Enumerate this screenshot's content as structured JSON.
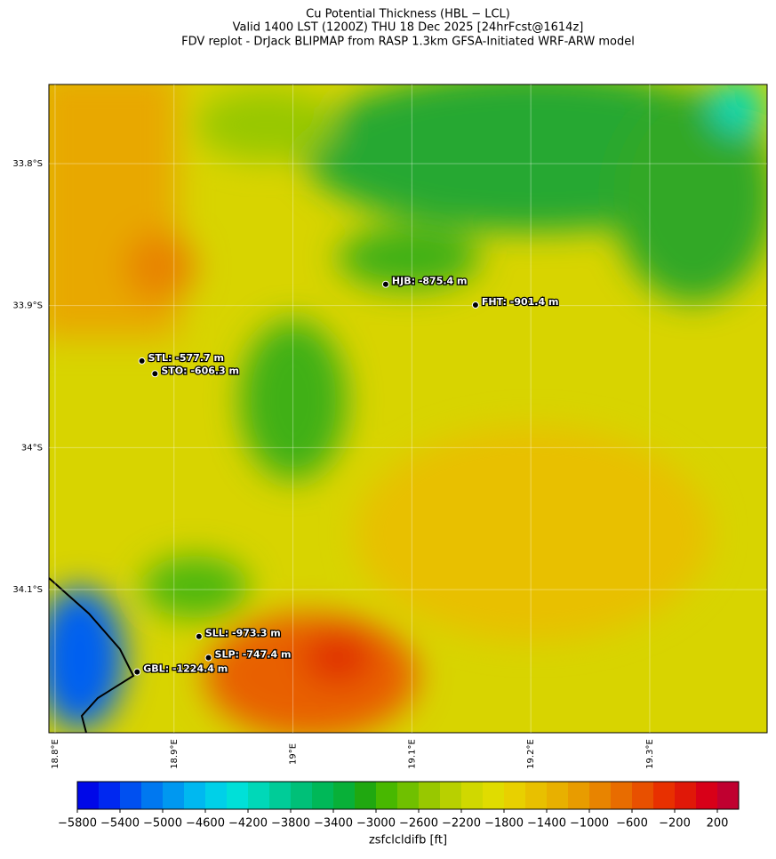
{
  "chart_data": {
    "type": "map",
    "title": [
      "Cu Potential Thickness (HBL − LCL)",
      "Valid 1400 LST (1200Z) THU 18 Dec 2025 [24hrFcst@1614z]",
      "FDV replot - DrJack BLIPMAP from RASP 1.3km GFSA-Initiated WRF-ARW model"
    ],
    "xlim": [
      18.7948,
      19.3987
    ],
    "ylim": [
      -34.2008,
      -33.7443
    ],
    "xticks": [
      {
        "value": 18.8,
        "label": "18.8°E"
      },
      {
        "value": 18.9,
        "label": "18.9°E"
      },
      {
        "value": 19.0,
        "label": "19°E"
      },
      {
        "value": 19.1,
        "label": "19.1°E"
      },
      {
        "value": 19.2,
        "label": "19.2°E"
      },
      {
        "value": 19.3,
        "label": "19.3°E"
      }
    ],
    "yticks": [
      {
        "value": -33.8,
        "label": "33.8°S"
      },
      {
        "value": -33.9,
        "label": "33.9°S"
      },
      {
        "value": -34.0,
        "label": "34°S"
      },
      {
        "value": -34.1,
        "label": "34.1°S"
      }
    ],
    "stations": [
      {
        "label": "HJB: -875.4 m",
        "lon": 19.078,
        "lat": -33.885
      },
      {
        "label": "FHT: -901.4 m",
        "lon": 19.1535,
        "lat": -33.8996
      },
      {
        "label": "STL: -577.7 m",
        "lon": 18.873,
        "lat": -33.939
      },
      {
        "label": "STO: -606.3 m",
        "lon": 18.884,
        "lat": -33.948
      },
      {
        "label": "SLL: -973.3 m",
        "lon": 18.921,
        "lat": -34.133
      },
      {
        "label": "SLP: -747.4 m",
        "lon": 18.929,
        "lat": -34.148
      },
      {
        "label": "GBL: -1224.4 m",
        "lon": 18.869,
        "lat": -34.158
      }
    ],
    "colorbar": {
      "label": "zsfclcldifb [ft]",
      "lim": [
        -5800,
        400
      ],
      "ticks": [
        {
          "value": -5800,
          "label": "−5800"
        },
        {
          "value": -5400,
          "label": "−5400"
        },
        {
          "value": -5000,
          "label": "−5000"
        },
        {
          "value": -4600,
          "label": "−4600"
        },
        {
          "value": -4200,
          "label": "−4200"
        },
        {
          "value": -3800,
          "label": "−3800"
        },
        {
          "value": -3400,
          "label": "−3400"
        },
        {
          "value": -3000,
          "label": "−3000"
        },
        {
          "value": -2600,
          "label": "−2600"
        },
        {
          "value": -2200,
          "label": "−2200"
        },
        {
          "value": -1800,
          "label": "−1800"
        },
        {
          "value": -1400,
          "label": "−1400"
        },
        {
          "value": -1000,
          "label": "−1000"
        },
        {
          "value": -600,
          "label": "−600"
        },
        {
          "value": -200,
          "label": "−200"
        },
        200
      ],
      "colors": [
        "#0008e8",
        "#0028f0",
        "#0050f0",
        "#0078f0",
        "#0098f0",
        "#00b8f0",
        "#00d0e8",
        "#00e0d8",
        "#00d8b8",
        "#00cc98",
        "#00c078",
        "#00b858",
        "#08b038",
        "#20a810",
        "#48b800",
        "#70c000",
        "#98c800",
        "#b8d000",
        "#d0d800",
        "#e0dc00",
        "#e8d000",
        "#e8c000",
        "#e8b000",
        "#e89c00",
        "#e88400",
        "#e86c00",
        "#e85000",
        "#e83000",
        "#e01808",
        "#d80018",
        "#c00030"
      ]
    }
  }
}
